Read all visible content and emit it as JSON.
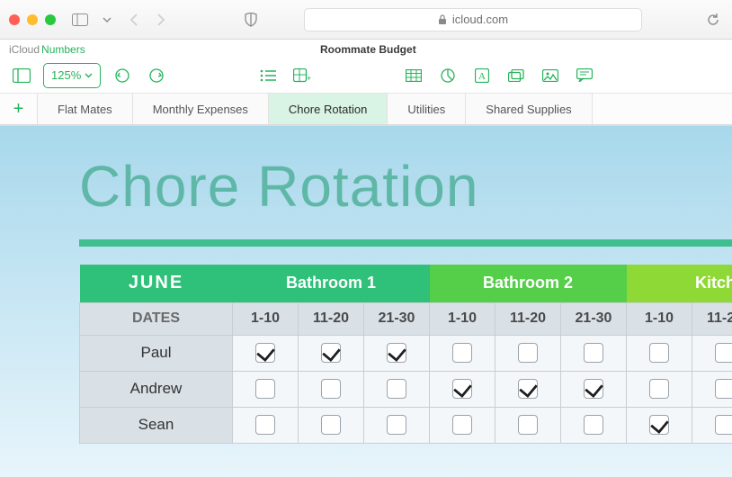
{
  "browser": {
    "url_host": "icloud.com",
    "traffic_colors": {
      "close": "#ff5f57",
      "min": "#febc2e",
      "max": "#28c840"
    }
  },
  "app": {
    "brand1": "iCloud",
    "brand2": "Numbers",
    "doc_title": "Roommate Budget",
    "zoom_label": "125%"
  },
  "sheets": {
    "tabs": [
      "Flat Mates",
      "Monthly Expenses",
      "Chore Rotation",
      "Utilities",
      "Shared Supplies"
    ],
    "active_index": 2
  },
  "page": {
    "title": "Chore Rotation",
    "title_color": "#5fb7a8",
    "rule_color": "#3fbf8f",
    "bg_gradient_from": "#a8d8ec",
    "bg_gradient_to": "#e8f5fb"
  },
  "table": {
    "month": "JUNE",
    "dates_label": "DATES",
    "groups": [
      {
        "label": "Bathroom 1",
        "color": "#2fc07a"
      },
      {
        "label": "Bathroom 2",
        "color": "#55ce4a"
      },
      {
        "label": "Kitchen",
        "color": "#8fd936"
      }
    ],
    "date_ranges": [
      "1-10",
      "11-20",
      "21-30"
    ],
    "header_colors": {
      "month_bg": "#2fc07a",
      "sub_bg": "#d9e0e6",
      "sub_text": "#4a4a4a",
      "cell_bg": "#f4f7f9",
      "border": "#c7ced4"
    },
    "rows": [
      {
        "name": "Paul",
        "checks": [
          true,
          true,
          true,
          false,
          false,
          false,
          false,
          false,
          false
        ]
      },
      {
        "name": "Andrew",
        "checks": [
          false,
          false,
          false,
          true,
          true,
          true,
          false,
          false,
          false
        ]
      },
      {
        "name": "Sean",
        "checks": [
          false,
          false,
          false,
          false,
          false,
          false,
          true,
          false,
          false
        ]
      }
    ]
  }
}
